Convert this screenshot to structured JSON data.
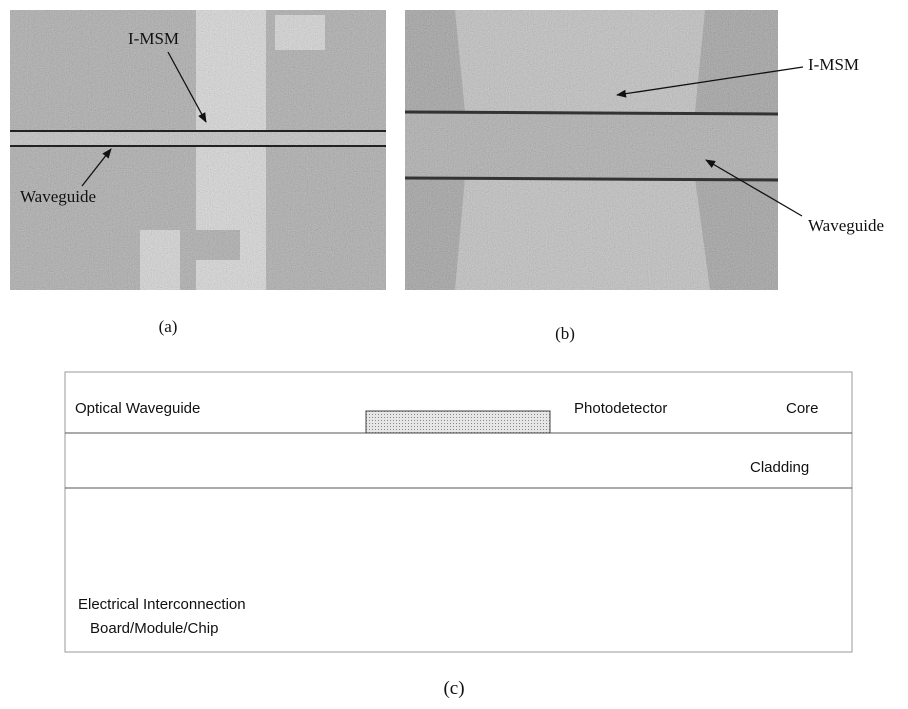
{
  "panel_a": {
    "caption": "(a)",
    "labels": {
      "imsm": "I-MSM",
      "waveguide": "Waveguide"
    }
  },
  "panel_b": {
    "caption": "(b)",
    "labels": {
      "imsm": "I-MSM",
      "waveguide": "Waveguide"
    }
  },
  "panel_c": {
    "caption": "(c)",
    "labels": {
      "optical_waveguide": "Optical Waveguide",
      "photodetector": "Photodetector",
      "core": "Core",
      "cladding": "Cladding",
      "substrate_lines": [
        "Electrical Interconnection",
        "Board/Module/Chip"
      ]
    }
  }
}
